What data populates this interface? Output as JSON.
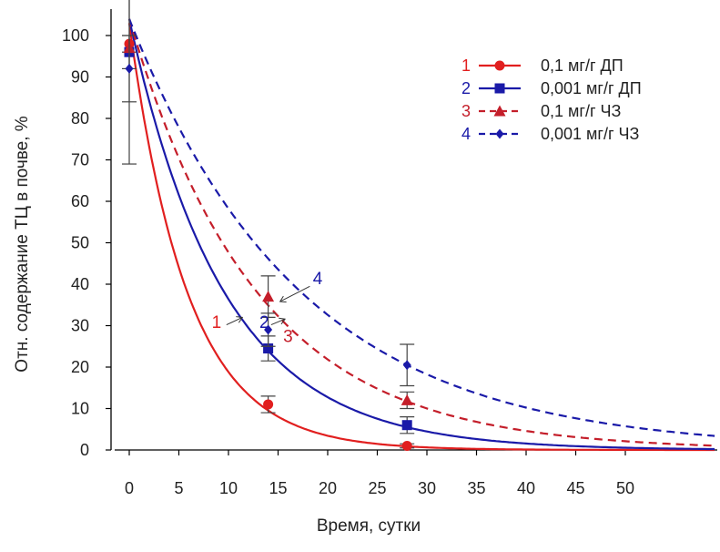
{
  "chart_data": {
    "type": "scatter",
    "title": "",
    "xlabel": "Время, сутки",
    "ylabel": "Отн. содержание ТЦ в почве, %",
    "xlim": [
      -1,
      59
    ],
    "ylim": [
      0,
      105
    ],
    "xticks": [
      0,
      5,
      10,
      15,
      20,
      25,
      30,
      35,
      40,
      45,
      50
    ],
    "yticks": [
      0,
      10,
      20,
      30,
      40,
      50,
      60,
      70,
      80,
      90,
      100
    ],
    "grid": false,
    "legend_position": "top-right",
    "series": [
      {
        "id": "1",
        "name": "0,1 мг/г ДП",
        "color": "#e11f1f",
        "dash": "solid",
        "marker": "circle",
        "points": [
          {
            "x": 0,
            "y": 98,
            "err": 2
          },
          {
            "x": 14,
            "y": 11,
            "err": 2
          },
          {
            "x": 28,
            "y": 1,
            "err": 0.5
          }
        ],
        "fit": {
          "a": 103,
          "k": 0.17
        },
        "curve_label": {
          "text": "1",
          "x": 8.8,
          "y": 29.5
        }
      },
      {
        "id": "2",
        "name": "0,001 мг/г ДП",
        "color": "#1a1aa8",
        "dash": "solid",
        "marker": "square",
        "points": [
          {
            "x": 0,
            "y": 96,
            "err": 4
          },
          {
            "x": 14,
            "y": 24.5,
            "err": 3
          },
          {
            "x": 28,
            "y": 6,
            "err": 2
          }
        ],
        "fit": {
          "a": 104,
          "k": 0.105
        },
        "curve_label": {
          "text": "2",
          "x": 13.6,
          "y": 29.5
        }
      },
      {
        "id": "3",
        "name": "0,1 мг/г ЧЗ",
        "color": "#c41e2a",
        "dash": "dashed",
        "marker": "triangle",
        "points": [
          {
            "x": 0,
            "y": 97,
            "err": 13
          },
          {
            "x": 14,
            "y": 37,
            "err": 5
          },
          {
            "x": 28,
            "y": 12,
            "err": 2
          }
        ],
        "fit": {
          "a": 104,
          "k": 0.078
        },
        "curve_label": {
          "text": "3",
          "x": 16,
          "y": 26
        }
      },
      {
        "id": "4",
        "name": "0,001 мг/г ЧЗ",
        "color": "#1a1aa8",
        "dash": "dashed",
        "marker": "diamond",
        "points": [
          {
            "x": 0,
            "y": 92,
            "err": 23
          },
          {
            "x": 14,
            "y": 29,
            "err": 4
          },
          {
            "x": 28,
            "y": 20.5,
            "err": 5
          }
        ],
        "fit": {
          "a": 104,
          "k": 0.058
        },
        "curve_label": {
          "text": "4",
          "x": 19,
          "y": 40
        }
      }
    ]
  }
}
